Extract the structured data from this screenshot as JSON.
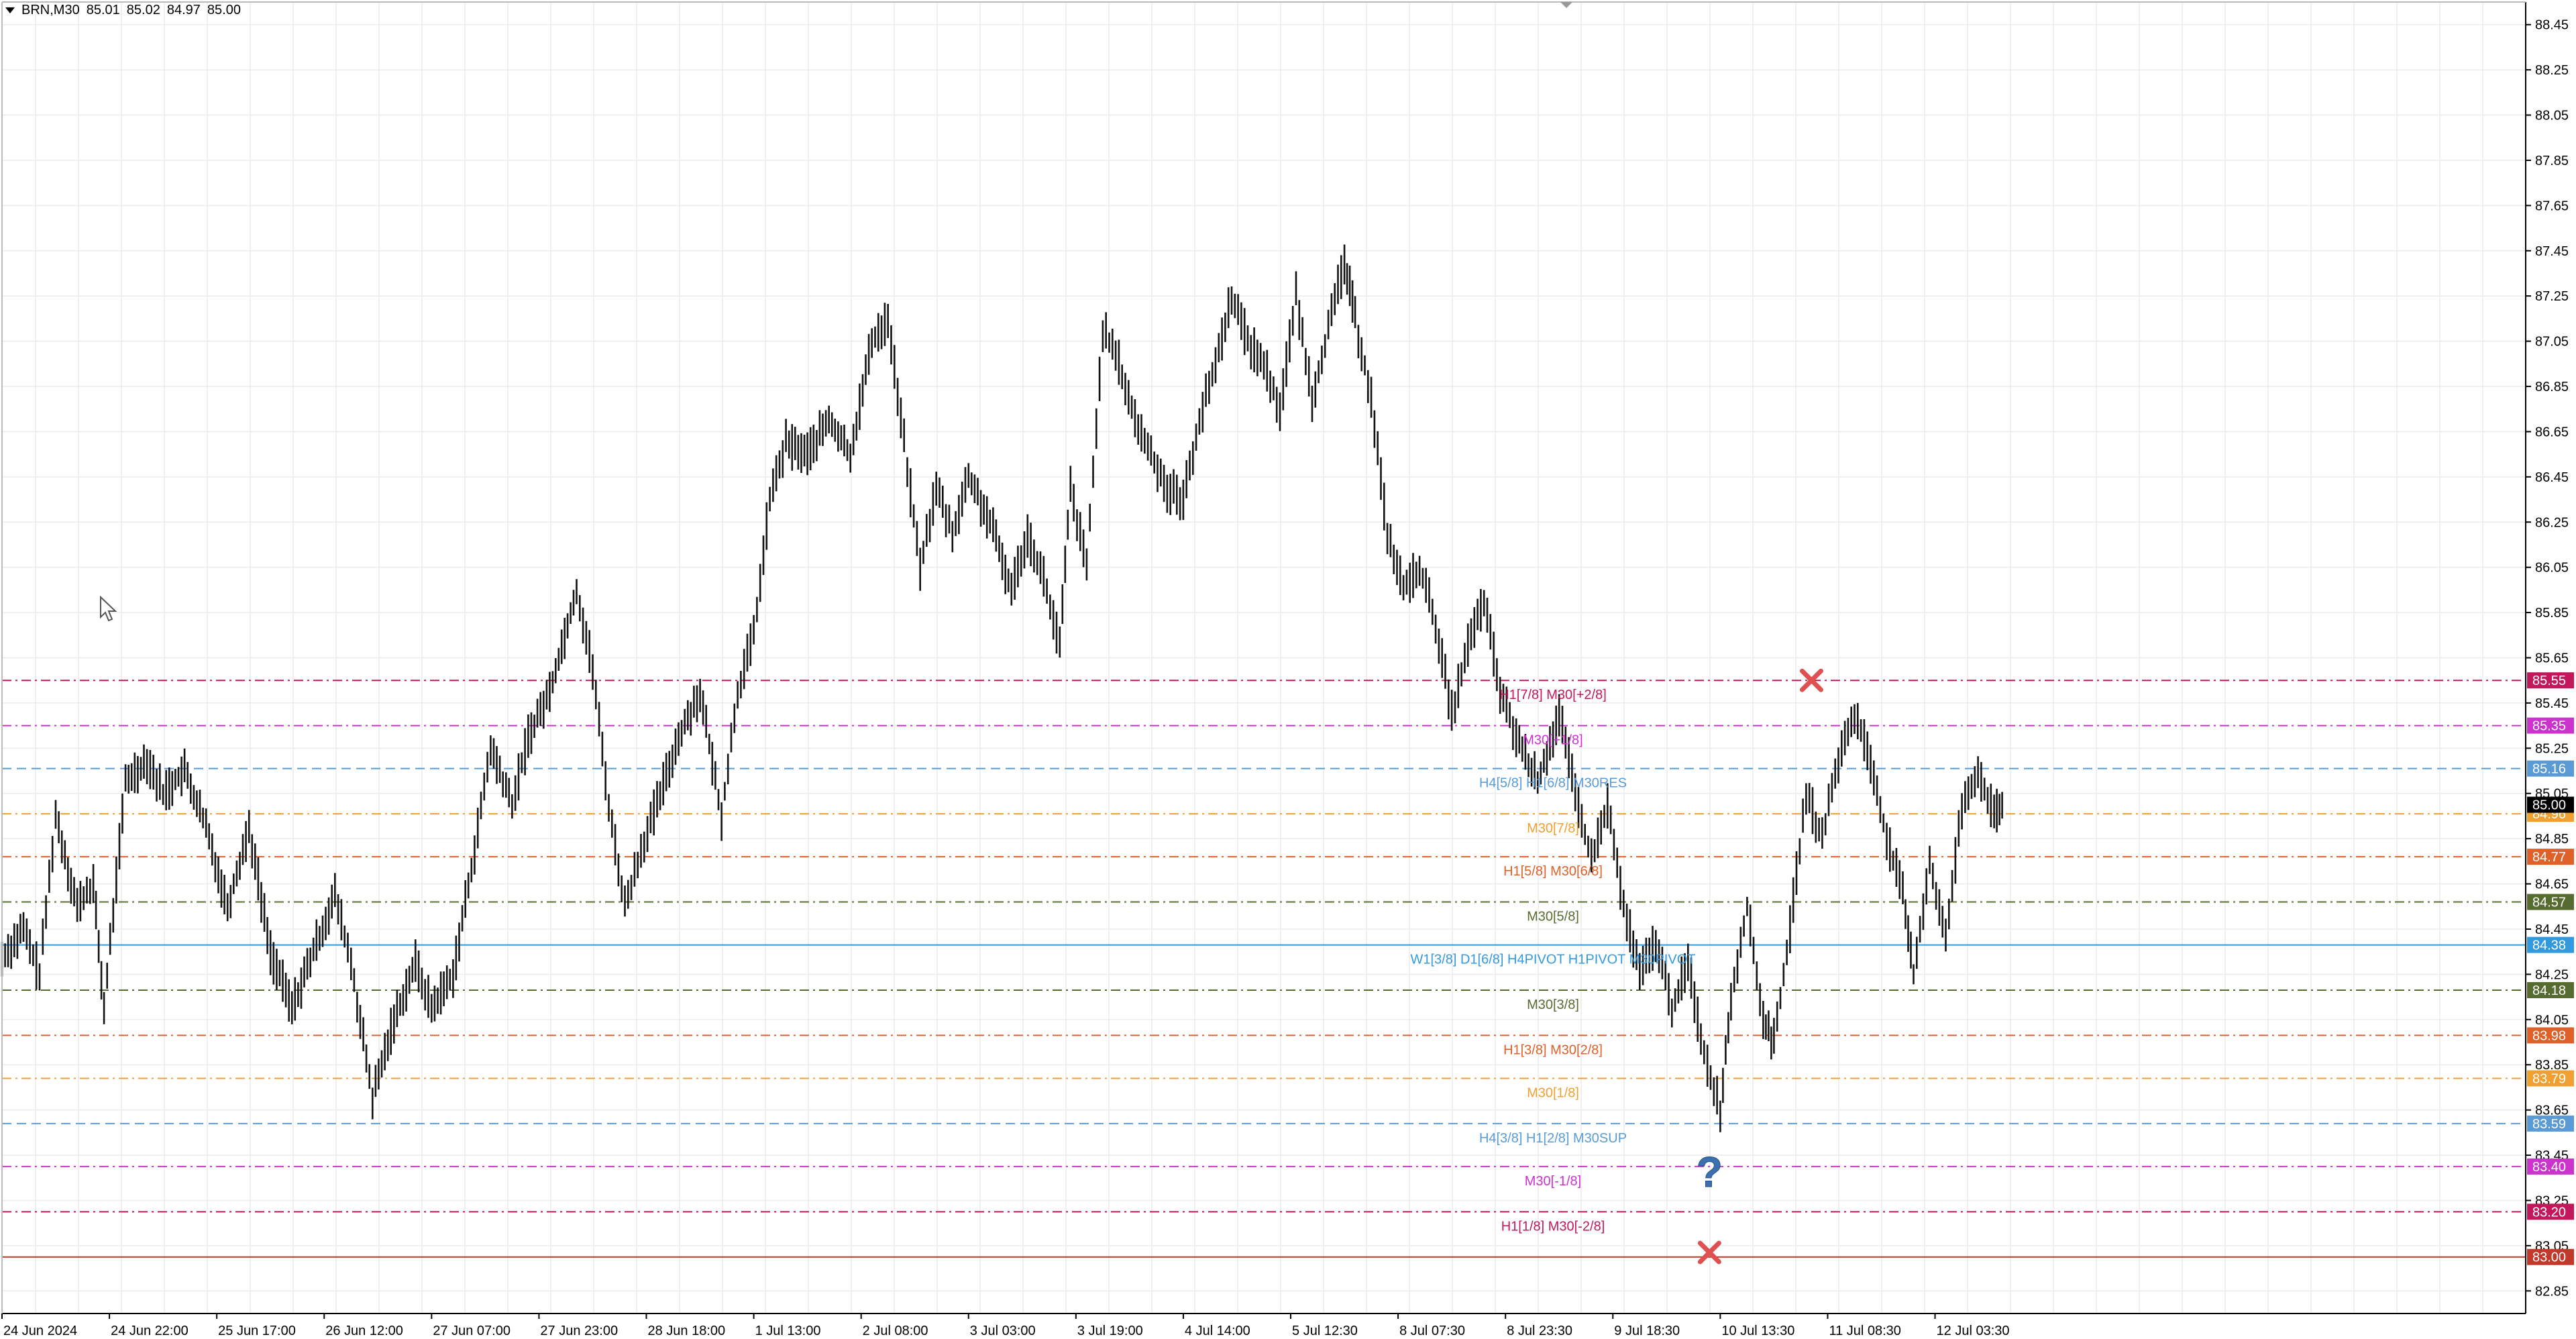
{
  "symbol": {
    "name": "BRN,M30",
    "ohlc": [
      "85.01",
      "85.02",
      "84.97",
      "85.00"
    ]
  },
  "chart_data": {
    "type": "candlestick",
    "title": "",
    "xlabel": "",
    "ylabel": "",
    "ylim": [
      82.75,
      88.55
    ],
    "grid": true,
    "y_ticks": [
      88.45,
      88.25,
      88.05,
      87.85,
      87.65,
      87.45,
      87.25,
      87.05,
      86.85,
      86.65,
      86.45,
      86.25,
      86.05,
      85.85,
      85.65,
      85.45,
      85.25,
      85.05,
      84.85,
      84.65,
      84.45,
      84.25,
      84.05,
      83.85,
      83.65,
      83.45,
      83.25,
      83.05,
      82.85
    ],
    "x_labels": [
      "24 Jun 2024",
      "24 Jun 22:00",
      "25 Jun 17:00",
      "26 Jun 12:00",
      "27 Jun 07:00",
      "27 Jun 23:00",
      "28 Jun 18:00",
      "1 Jul 13:00",
      "2 Jul 08:00",
      "3 Jul 03:00",
      "3 Jul 19:00",
      "4 Jul 14:00",
      "5 Jul 12:30",
      "8 Jul 07:30",
      "8 Jul 23:30",
      "9 Jul 18:30",
      "10 Jul 13:30",
      "11 Jul 08:30",
      "12 Jul 03:30"
    ],
    "price_path": [
      {
        "x": 0.0,
        "y": 84.32
      },
      {
        "x": 0.4,
        "y": 84.45
      },
      {
        "x": 0.7,
        "y": 84.25
      },
      {
        "x": 1.0,
        "y": 84.95
      },
      {
        "x": 1.4,
        "y": 84.55
      },
      {
        "x": 1.7,
        "y": 84.65
      },
      {
        "x": 1.9,
        "y": 84.1
      },
      {
        "x": 2.3,
        "y": 85.1
      },
      {
        "x": 2.7,
        "y": 85.2
      },
      {
        "x": 3.0,
        "y": 85.05
      },
      {
        "x": 3.4,
        "y": 85.15
      },
      {
        "x": 3.8,
        "y": 84.9
      },
      {
        "x": 4.2,
        "y": 84.55
      },
      {
        "x": 4.6,
        "y": 84.9
      },
      {
        "x": 5.0,
        "y": 84.35
      },
      {
        "x": 5.4,
        "y": 84.1
      },
      {
        "x": 5.8,
        "y": 84.35
      },
      {
        "x": 6.2,
        "y": 84.6
      },
      {
        "x": 6.5,
        "y": 84.3
      },
      {
        "x": 6.9,
        "y": 83.7
      },
      {
        "x": 7.3,
        "y": 84.05
      },
      {
        "x": 7.7,
        "y": 84.3
      },
      {
        "x": 8.0,
        "y": 84.1
      },
      {
        "x": 8.4,
        "y": 84.25
      },
      {
        "x": 8.8,
        "y": 84.8
      },
      {
        "x": 9.1,
        "y": 85.25
      },
      {
        "x": 9.5,
        "y": 85.0
      },
      {
        "x": 9.8,
        "y": 85.3
      },
      {
        "x": 10.2,
        "y": 85.5
      },
      {
        "x": 10.7,
        "y": 85.95
      },
      {
        "x": 11.0,
        "y": 85.6
      },
      {
        "x": 11.3,
        "y": 85.0
      },
      {
        "x": 11.6,
        "y": 84.55
      },
      {
        "x": 11.9,
        "y": 84.8
      },
      {
        "x": 12.2,
        "y": 85.0
      },
      {
        "x": 12.6,
        "y": 85.3
      },
      {
        "x": 13.0,
        "y": 85.5
      },
      {
        "x": 13.4,
        "y": 84.95
      },
      {
        "x": 13.7,
        "y": 85.5
      },
      {
        "x": 14.0,
        "y": 85.75
      },
      {
        "x": 14.3,
        "y": 86.35
      },
      {
        "x": 14.6,
        "y": 86.6
      },
      {
        "x": 15.0,
        "y": 86.55
      },
      {
        "x": 15.4,
        "y": 86.7
      },
      {
        "x": 15.8,
        "y": 86.55
      },
      {
        "x": 16.2,
        "y": 87.05
      },
      {
        "x": 16.5,
        "y": 87.15
      },
      {
        "x": 16.8,
        "y": 86.6
      },
      {
        "x": 17.1,
        "y": 86.05
      },
      {
        "x": 17.4,
        "y": 86.4
      },
      {
        "x": 17.7,
        "y": 86.2
      },
      {
        "x": 18.0,
        "y": 86.45
      },
      {
        "x": 18.4,
        "y": 86.25
      },
      {
        "x": 18.8,
        "y": 85.95
      },
      {
        "x": 19.1,
        "y": 86.2
      },
      {
        "x": 19.4,
        "y": 86.0
      },
      {
        "x": 19.7,
        "y": 85.7
      },
      {
        "x": 19.9,
        "y": 86.4
      },
      {
        "x": 20.2,
        "y": 86.05
      },
      {
        "x": 20.5,
        "y": 87.1
      },
      {
        "x": 20.8,
        "y": 86.95
      },
      {
        "x": 21.1,
        "y": 86.7
      },
      {
        "x": 21.4,
        "y": 86.55
      },
      {
        "x": 21.7,
        "y": 86.4
      },
      {
        "x": 22.0,
        "y": 86.35
      },
      {
        "x": 22.3,
        "y": 86.7
      },
      {
        "x": 22.6,
        "y": 86.95
      },
      {
        "x": 22.9,
        "y": 87.25
      },
      {
        "x": 23.2,
        "y": 87.05
      },
      {
        "x": 23.5,
        "y": 86.95
      },
      {
        "x": 23.8,
        "y": 86.75
      },
      {
        "x": 24.1,
        "y": 87.25
      },
      {
        "x": 24.4,
        "y": 86.8
      },
      {
        "x": 24.7,
        "y": 87.1
      },
      {
        "x": 25.0,
        "y": 87.4
      },
      {
        "x": 25.2,
        "y": 87.15
      },
      {
        "x": 25.5,
        "y": 86.8
      },
      {
        "x": 25.8,
        "y": 86.2
      },
      {
        "x": 26.1,
        "y": 85.95
      },
      {
        "x": 26.4,
        "y": 86.05
      },
      {
        "x": 26.7,
        "y": 85.8
      },
      {
        "x": 27.0,
        "y": 85.4
      },
      {
        "x": 27.3,
        "y": 85.7
      },
      {
        "x": 27.6,
        "y": 85.9
      },
      {
        "x": 27.9,
        "y": 85.5
      },
      {
        "x": 28.2,
        "y": 85.3
      },
      {
        "x": 28.6,
        "y": 85.1
      },
      {
        "x": 29.0,
        "y": 85.4
      },
      {
        "x": 29.3,
        "y": 85.05
      },
      {
        "x": 29.6,
        "y": 84.75
      },
      {
        "x": 29.9,
        "y": 85.0
      },
      {
        "x": 30.2,
        "y": 84.55
      },
      {
        "x": 30.5,
        "y": 84.25
      },
      {
        "x": 30.8,
        "y": 84.4
      },
      {
        "x": 31.1,
        "y": 84.1
      },
      {
        "x": 31.4,
        "y": 84.3
      },
      {
        "x": 31.7,
        "y": 83.9
      },
      {
        "x": 32.0,
        "y": 83.65
      },
      {
        "x": 32.2,
        "y": 84.15
      },
      {
        "x": 32.5,
        "y": 84.55
      },
      {
        "x": 32.8,
        "y": 84.05
      },
      {
        "x": 33.0,
        "y": 83.95
      },
      {
        "x": 33.3,
        "y": 84.45
      },
      {
        "x": 33.6,
        "y": 85.05
      },
      {
        "x": 33.9,
        "y": 84.85
      },
      {
        "x": 34.2,
        "y": 85.2
      },
      {
        "x": 34.5,
        "y": 85.4
      },
      {
        "x": 34.8,
        "y": 85.2
      },
      {
        "x": 35.1,
        "y": 84.85
      },
      {
        "x": 35.4,
        "y": 84.6
      },
      {
        "x": 35.6,
        "y": 84.25
      },
      {
        "x": 35.9,
        "y": 84.75
      },
      {
        "x": 36.2,
        "y": 84.4
      },
      {
        "x": 36.5,
        "y": 85.0
      },
      {
        "x": 36.8,
        "y": 85.15
      },
      {
        "x": 37.1,
        "y": 84.95
      },
      {
        "x": 37.3,
        "y": 85.0
      }
    ],
    "x_label_step": 2.0,
    "levels": [
      {
        "price": 85.55,
        "label": "H1[7/8] M30[+2/8]",
        "price_label": "85.55",
        "color": "#c2185b",
        "style": "dashdot"
      },
      {
        "price": 85.35,
        "label": "M30[+1/8]",
        "price_label": "85.35",
        "color": "#cc33cc",
        "style": "dashdot"
      },
      {
        "price": 85.16,
        "label": "H4[5/8] H1[6/8] M30RES",
        "price_label": "85.16",
        "color": "#5b9bd5",
        "style": "dashed"
      },
      {
        "price": 84.96,
        "label": "M30[7/8]",
        "price_label": "84.96",
        "color": "#f0a030",
        "style": "dashdot"
      },
      {
        "price": 84.77,
        "label": "H1[5/8] M30[6/8]",
        "price_label": "84.77",
        "color": "#e0602a",
        "style": "dashdot"
      },
      {
        "price": 84.57,
        "label": "M30[5/8]",
        "price_label": "84.57",
        "color": "#556b2f",
        "style": "dashdot"
      },
      {
        "price": 84.38,
        "label": "W1[3/8] D1[6/8] H4PIVOT H1PIVOT M30PIVOT",
        "price_label": "84.38",
        "color": "#3399dd",
        "style": "solid"
      },
      {
        "price": 84.18,
        "label": "M30[3/8]",
        "price_label": "84.18",
        "color": "#556b2f",
        "style": "dashdot"
      },
      {
        "price": 83.98,
        "label": "H1[3/8] M30[2/8]",
        "price_label": "83.98",
        "color": "#e0602a",
        "style": "dashdot"
      },
      {
        "price": 83.79,
        "label": "M30[1/8]",
        "price_label": "83.79",
        "color": "#f0a030",
        "style": "dashdot"
      },
      {
        "price": 83.59,
        "label": "H4[3/8] H1[2/8] M30SUP",
        "price_label": "83.59",
        "color": "#5b9bd5",
        "style": "dashed"
      },
      {
        "price": 83.4,
        "label": "M30[-1/8]",
        "price_label": "83.40",
        "color": "#cc33cc",
        "style": "dashdot"
      },
      {
        "price": 83.2,
        "label": "H1[1/8] M30[-2/8]",
        "price_label": "83.20",
        "color": "#c2185b",
        "style": "dashdot"
      },
      {
        "price": 83.0,
        "label": "",
        "price_label": "83.00",
        "color": "#c0392b",
        "style": "solid"
      }
    ],
    "current_price": {
      "price": 85.0,
      "label": "85.00",
      "color": "#000000"
    },
    "markers": [
      {
        "type": "cross",
        "x": 33.7,
        "y": 85.55,
        "color": "#e05050"
      },
      {
        "type": "question",
        "x": 31.8,
        "y": 83.37,
        "color": "#3a6fb0"
      },
      {
        "type": "cross",
        "x": 31.8,
        "y": 83.02,
        "color": "#e05050"
      }
    ],
    "axis_color": "#000000",
    "grid_color": "#ececec"
  }
}
